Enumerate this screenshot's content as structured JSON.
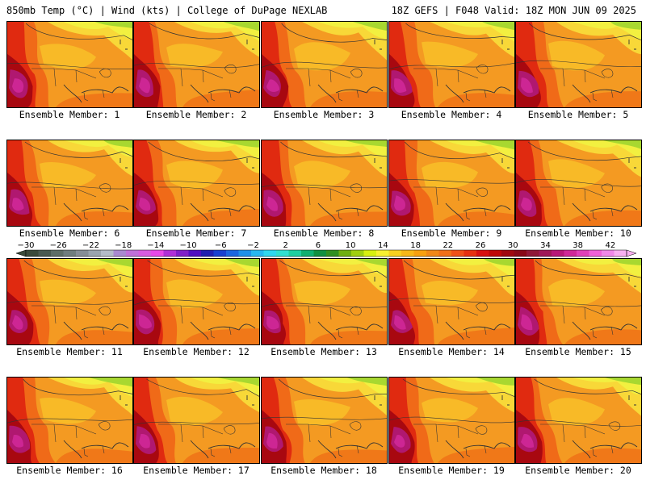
{
  "header": {
    "left": "850mb Temp (°C) | Wind (kts) | College of DuPage NEXLAB",
    "right": "18Z GEFS | F048 Valid: 18Z MON JUN 09 2025"
  },
  "panels": [
    {
      "label": "Ensemble Member: 1"
    },
    {
      "label": "Ensemble Member: 2"
    },
    {
      "label": "Ensemble Member: 3"
    },
    {
      "label": "Ensemble Member: 4"
    },
    {
      "label": "Ensemble Member: 5"
    },
    {
      "label": "Ensemble Member: 6"
    },
    {
      "label": "Ensemble Member: 7"
    },
    {
      "label": "Ensemble Member: 8"
    },
    {
      "label": "Ensemble Member: 9"
    },
    {
      "label": "Ensemble Member: 10"
    },
    {
      "label": "Ensemble Member: 11"
    },
    {
      "label": "Ensemble Member: 12"
    },
    {
      "label": "Ensemble Member: 13"
    },
    {
      "label": "Ensemble Member: 14"
    },
    {
      "label": "Ensemble Member: 15"
    },
    {
      "label": "Ensemble Member: 16"
    },
    {
      "label": "Ensemble Member: 17"
    },
    {
      "label": "Ensemble Member: 18"
    },
    {
      "label": "Ensemble Member: 19"
    },
    {
      "label": "Ensemble Member: 20"
    }
  ],
  "colorbar": {
    "min": -30,
    "max": 44,
    "ticks": [
      "−30",
      "−26",
      "−22",
      "−18",
      "−14",
      "−10",
      "−6",
      "−2",
      "2",
      "6",
      "10",
      "14",
      "18",
      "22",
      "26",
      "30",
      "34",
      "38",
      "42"
    ],
    "colors": [
      "#3a4a3a",
      "#4a5a50",
      "#5e6e66",
      "#707e7e",
      "#868e96",
      "#9aa4ae",
      "#b4bcc8",
      "#a98ad0",
      "#c070d8",
      "#d85ce0",
      "#e848e8",
      "#b030d8",
      "#8020c8",
      "#5010c0",
      "#2020b0",
      "#1840d0",
      "#1c66e0",
      "#2090e8",
      "#28b8f0",
      "#30d8f0",
      "#30e0d0",
      "#20d0a0",
      "#10b070",
      "#109040",
      "#309020",
      "#70b010",
      "#a0d010",
      "#d8f010",
      "#f8f030",
      "#f8d020",
      "#f8b818",
      "#f8a010",
      "#f08818",
      "#f07018",
      "#f05018",
      "#e83010",
      "#d81010",
      "#c00808",
      "#a00810",
      "#880818",
      "#901838",
      "#a01858",
      "#b81878",
      "#d02898",
      "#e040b8",
      "#f060d8",
      "#f088e8",
      "#f8b0f0"
    ]
  }
}
